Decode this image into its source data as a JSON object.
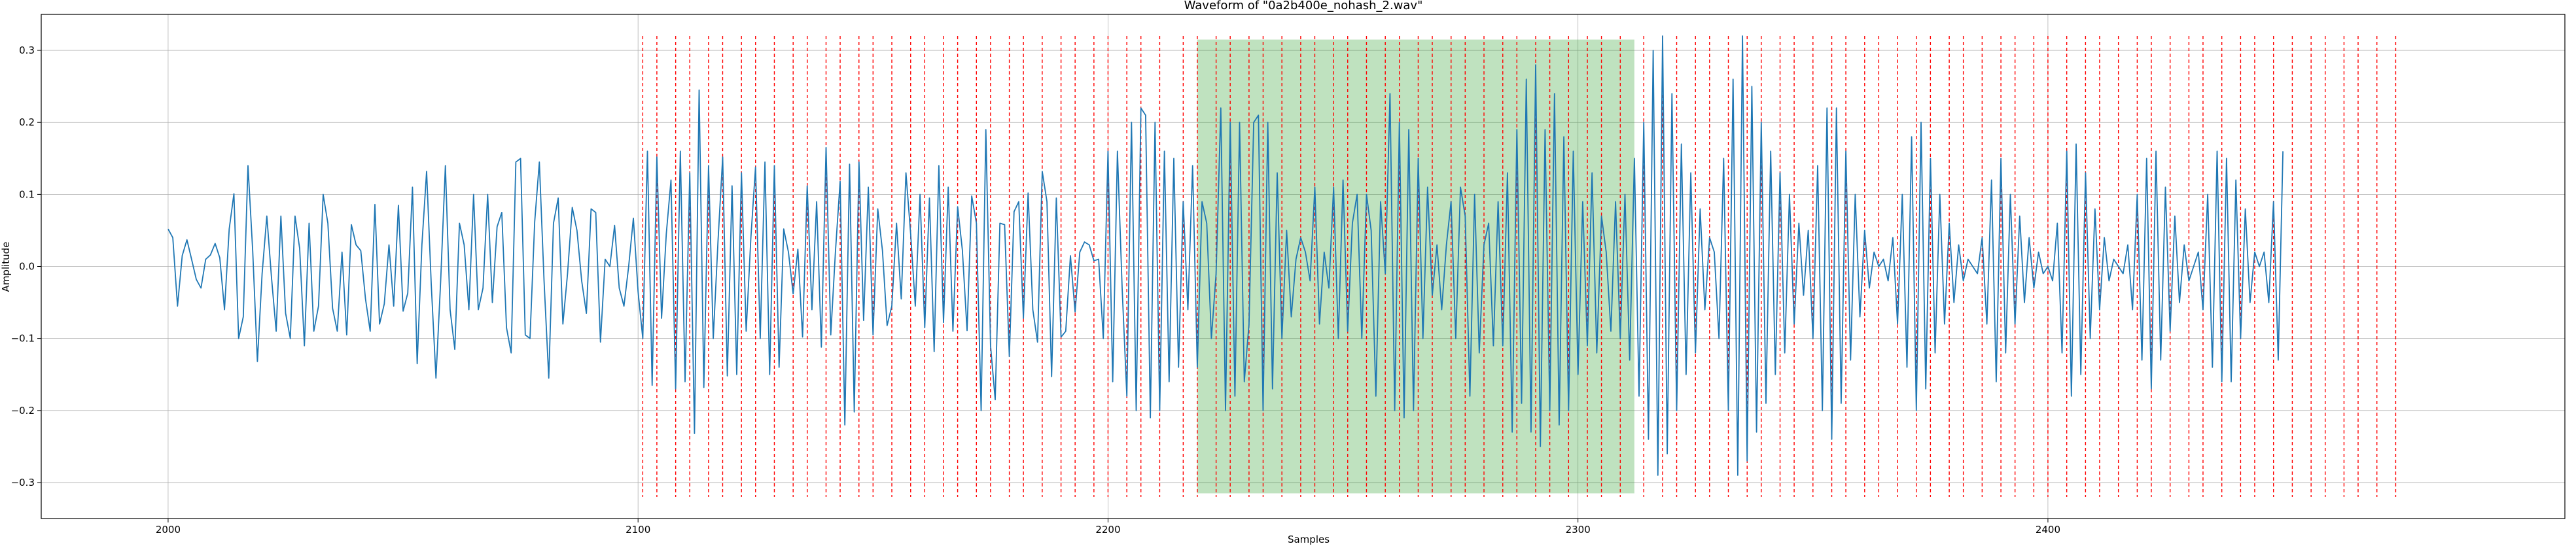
{
  "chart_data": {
    "type": "line",
    "title": "Waveform of \"0a2b400e_nohash_2.wav\"",
    "xlabel": "Samples",
    "ylabel": "Amplitude",
    "xlim": [
      1973,
      2510
    ],
    "ylim": [
      -0.35,
      0.35
    ],
    "x_ticks": [
      2000,
      2100,
      2200,
      2300,
      2400
    ],
    "y_ticks": [
      -0.3,
      -0.2,
      -0.1,
      0.0,
      0.1,
      0.2,
      0.3
    ],
    "grid": true,
    "line_color": "#1f77b4",
    "marker_color": "#ff0000",
    "highlight_color": "#2ca02c",
    "x_start": 2000,
    "y": [
      0.052,
      0.04,
      -0.055,
      0.015,
      0.037,
      0.01,
      -0.018,
      -0.03,
      0.01,
      0.016,
      0.032,
      0.012,
      -0.06,
      0.052,
      0.101,
      -0.1,
      -0.07,
      0.14,
      0.022,
      -0.132,
      -0.01,
      0.07,
      -0.015,
      -0.09,
      0.07,
      -0.065,
      -0.1,
      0.07,
      0.025,
      -0.11,
      0.06,
      -0.09,
      -0.055,
      0.1,
      0.06,
      -0.058,
      -0.09,
      0.02,
      -0.095,
      0.058,
      0.03,
      0.022,
      -0.045,
      -0.09,
      0.086,
      -0.08,
      -0.052,
      0.03,
      -0.055,
      0.085,
      -0.062,
      -0.037,
      0.11,
      -0.135,
      0.03,
      0.132,
      -0.025,
      -0.155,
      -0.02,
      0.14,
      -0.06,
      -0.115,
      0.06,
      0.03,
      -0.06,
      0.1,
      -0.06,
      -0.03,
      0.1,
      -0.05,
      0.055,
      0.075,
      -0.085,
      -0.12,
      0.145,
      0.15,
      -0.095,
      -0.1,
      0.062,
      0.145,
      -0.02,
      -0.155,
      0.06,
      0.095,
      -0.08,
      -0.01,
      0.082,
      0.05,
      -0.02,
      -0.065,
      0.08,
      0.075,
      -0.105,
      0.01,
      0.0,
      0.057,
      -0.03,
      -0.055,
      0.0,
      0.067,
      -0.035,
      -0.1,
      0.16,
      -0.165,
      0.152,
      -0.072,
      0.045,
      0.12,
      -0.17,
      0.16,
      -0.16,
      0.13,
      -0.232,
      0.245,
      -0.168,
      0.14,
      -0.1,
      0.034,
      0.152,
      -0.152,
      0.112,
      -0.15,
      0.13,
      -0.09,
      0.04,
      0.138,
      -0.1,
      0.145,
      -0.15,
      0.14,
      -0.14,
      0.052,
      0.02,
      -0.038,
      0.024,
      -0.098,
      0.112,
      -0.06,
      0.09,
      -0.112,
      0.165,
      -0.095,
      0.02,
      0.118,
      -0.22,
      0.142,
      -0.202,
      0.145,
      -0.075,
      0.11,
      -0.095,
      0.08,
      0.022,
      -0.082,
      -0.055,
      0.06,
      -0.045,
      0.13,
      0.045,
      -0.055,
      0.1,
      -0.085,
      0.095,
      -0.118,
      0.14,
      -0.078,
      0.11,
      -0.09,
      0.083,
      0.023,
      -0.089,
      0.098,
      0.06,
      -0.2,
      0.19,
      -0.11,
      -0.185,
      0.06,
      0.058,
      -0.125,
      0.076,
      0.09,
      -0.072,
      0.102,
      -0.06,
      -0.105,
      0.132,
      0.09,
      -0.153,
      0.095,
      -0.098,
      -0.09,
      0.015,
      -0.063,
      0.02,
      0.034,
      0.03,
      0.008,
      0.01,
      -0.1,
      0.16,
      -0.16,
      0.16,
      -0.03,
      -0.18,
      0.2,
      -0.2,
      0.22,
      0.21,
      -0.21,
      0.2,
      -0.2,
      0.16,
      -0.16,
      0.15,
      -0.14,
      0.09,
      -0.06,
      0.14,
      -0.14,
      0.09,
      0.06,
      -0.1,
      -0.01,
      0.22,
      -0.2,
      0.2,
      -0.18,
      0.2,
      -0.16,
      -0.08,
      0.2,
      0.21,
      -0.2,
      0.2,
      -0.17,
      0.13,
      -0.1,
      0.05,
      -0.07,
      0.01,
      0.04,
      0.02,
      -0.02,
      0.11,
      -0.08,
      0.02,
      -0.03,
      0.11,
      -0.1,
      0.12,
      -0.09,
      0.06,
      0.1,
      -0.1,
      0.1,
      0.05,
      -0.18,
      0.09,
      -0.01,
      0.24,
      -0.2,
      0.2,
      -0.21,
      0.19,
      -0.2,
      0.15,
      -0.1,
      0.11,
      -0.04,
      0.03,
      -0.06,
      0.03,
      0.09,
      -0.1,
      0.11,
      0.07,
      -0.18,
      0.1,
      -0.12,
      0.03,
      0.06,
      -0.11,
      0.09,
      -0.11,
      0.13,
      -0.23,
      0.19,
      -0.19,
      0.26,
      -0.23,
      0.28,
      -0.25,
      0.19,
      -0.2,
      0.24,
      -0.22,
      0.18,
      -0.2,
      0.16,
      -0.15,
      0.09,
      -0.11,
      0.13,
      -0.12,
      0.07,
      0.02,
      -0.09,
      0.09,
      -0.1,
      0.1,
      -0.13,
      0.15,
      -0.18,
      0.2,
      -0.24,
      0.3,
      -0.29,
      0.32,
      -0.26,
      0.24,
      -0.2,
      0.17,
      -0.15,
      0.13,
      -0.12,
      0.08,
      -0.06,
      0.04,
      0.02,
      -0.1,
      0.15,
      -0.2,
      0.26,
      -0.29,
      0.32,
      -0.27,
      0.25,
      -0.23,
      0.2,
      -0.19,
      0.16,
      -0.15,
      0.13,
      -0.12,
      0.1,
      -0.08,
      0.06,
      -0.04,
      0.05,
      -0.1,
      0.14,
      -0.2,
      0.22,
      -0.24,
      0.22,
      -0.19,
      0.16,
      -0.13,
      0.1,
      -0.07,
      0.05,
      -0.03,
      0.02,
      0.0,
      0.01,
      -0.02,
      0.04,
      -0.08,
      0.1,
      -0.14,
      0.18,
      -0.2,
      0.2,
      -0.17,
      0.15,
      -0.12,
      0.1,
      -0.08,
      0.06,
      -0.05,
      0.03,
      -0.02,
      0.01,
      0.0,
      -0.01,
      0.04,
      -0.08,
      0.12,
      -0.16,
      0.15,
      -0.12,
      0.1,
      -0.08,
      0.07,
      -0.05,
      0.04,
      -0.03,
      0.02,
      -0.01,
      0.0,
      -0.02,
      0.06,
      -0.12,
      0.16,
      -0.18,
      0.17,
      -0.15,
      0.13,
      -0.1,
      0.08,
      -0.06,
      0.04,
      -0.02,
      0.01,
      0.0,
      -0.01,
      0.03,
      -0.06,
      0.1,
      -0.13,
      0.15,
      -0.17,
      0.16,
      -0.13,
      0.11,
      -0.09,
      0.07,
      -0.05,
      0.03,
      -0.02,
      0.0,
      0.02,
      -0.06,
      0.1,
      -0.14,
      0.16,
      -0.16,
      0.15,
      -0.16,
      0.12,
      -0.1,
      0.08,
      -0.05,
      0.02,
      0.0,
      0.02,
      -0.05,
      0.09,
      -0.13,
      0.16
    ],
    "markers_x": [
      2101,
      2104,
      2108,
      2111,
      2115,
      2118,
      2122,
      2125,
      2129,
      2133,
      2136,
      2140,
      2143,
      2147,
      2150,
      2154,
      2158,
      2161,
      2165,
      2168,
      2172,
      2175,
      2179,
      2182,
      2186,
      2190,
      2193,
      2197,
      2200,
      2204,
      2207,
      2211,
      2216,
      2219,
      2223,
      2226,
      2230,
      2233,
      2237,
      2241,
      2244,
      2248,
      2251,
      2255,
      2259,
      2262,
      2266,
      2269,
      2273,
      2276,
      2280,
      2284,
      2287,
      2291,
      2294,
      2298,
      2302,
      2305,
      2309,
      2314,
      2318,
      2321,
      2325,
      2328,
      2332,
      2336,
      2339,
      2343,
      2346,
      2350,
      2354,
      2357,
      2361,
      2364,
      2368,
      2372,
      2375,
      2379,
      2382,
      2386,
      2390,
      2393,
      2397,
      2400,
      2404,
      2408,
      2411,
      2415,
      2419,
      2422,
      2426,
      2430,
      2433,
      2437,
      2441,
      2444,
      2448,
      2452,
      2456,
      2459,
      2463,
      2466,
      2470,
      2474
    ],
    "highlight": {
      "x0": 2219,
      "x1": 2312,
      "y0": -0.315,
      "y1": 0.315
    }
  }
}
